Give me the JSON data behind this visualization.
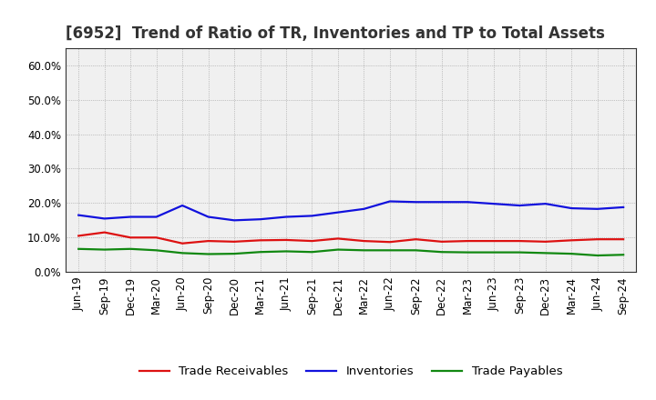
{
  "title": "[6952]  Trend of Ratio of TR, Inventories and TP to Total Assets",
  "x_labels": [
    "Jun-19",
    "Sep-19",
    "Dec-19",
    "Mar-20",
    "Jun-20",
    "Sep-20",
    "Dec-20",
    "Mar-21",
    "Jun-21",
    "Sep-21",
    "Dec-21",
    "Mar-22",
    "Jun-22",
    "Sep-22",
    "Dec-22",
    "Mar-23",
    "Jun-23",
    "Sep-23",
    "Dec-23",
    "Mar-24",
    "Jun-24",
    "Sep-24"
  ],
  "trade_receivables": [
    0.105,
    0.115,
    0.1,
    0.1,
    0.083,
    0.09,
    0.088,
    0.092,
    0.093,
    0.09,
    0.097,
    0.09,
    0.087,
    0.095,
    0.088,
    0.09,
    0.09,
    0.09,
    0.088,
    0.092,
    0.095,
    0.095
  ],
  "inventories": [
    0.165,
    0.155,
    0.16,
    0.16,
    0.193,
    0.16,
    0.15,
    0.153,
    0.16,
    0.163,
    0.173,
    0.183,
    0.205,
    0.203,
    0.203,
    0.203,
    0.198,
    0.193,
    0.198,
    0.185,
    0.183,
    0.188
  ],
  "trade_payables": [
    0.067,
    0.065,
    0.067,
    0.063,
    0.055,
    0.052,
    0.053,
    0.058,
    0.06,
    0.058,
    0.065,
    0.063,
    0.063,
    0.063,
    0.058,
    0.057,
    0.057,
    0.057,
    0.055,
    0.053,
    0.048,
    0.05
  ],
  "tr_color": "#dd1111",
  "inv_color": "#1111dd",
  "tp_color": "#118811",
  "ylim": [
    0.0,
    0.65
  ],
  "yticks": [
    0.0,
    0.1,
    0.2,
    0.3,
    0.4,
    0.5,
    0.6
  ],
  "ytick_labels": [
    "0.0%",
    "10.0%",
    "20.0%",
    "30.0%",
    "40.0%",
    "50.0%",
    "60.0%"
  ],
  "background_color": "#ffffff",
  "plot_bg_color": "#f0f0f0",
  "grid_color": "#999999",
  "legend_labels": [
    "Trade Receivables",
    "Inventories",
    "Trade Payables"
  ],
  "title_fontsize": 12,
  "tick_fontsize": 8.5,
  "legend_fontsize": 9.5,
  "line_width": 1.6,
  "title_color": "#333333"
}
